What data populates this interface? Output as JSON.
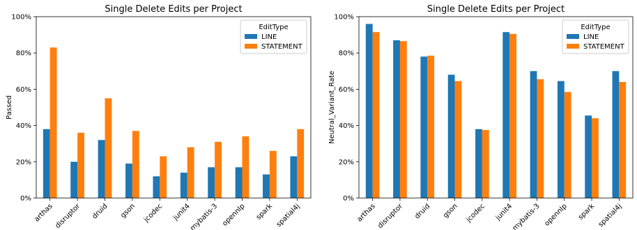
{
  "colors": {
    "line": "#1f77b4",
    "statement": "#ff7f0e"
  },
  "chart_data": [
    {
      "type": "bar",
      "title": "Single Delete Edits per Project",
      "xlabel": "",
      "ylabel": "Passed",
      "ylim": [
        0,
        1
      ],
      "yticks": [
        "0%",
        "20%",
        "40%",
        "60%",
        "80%",
        "100%"
      ],
      "categories": [
        "arthas",
        "disruptor",
        "druid",
        "gson",
        "jcodec",
        "junit4",
        "mybatis-3",
        "opennlp",
        "spark",
        "spatial4j"
      ],
      "legend": {
        "title": "EditType",
        "position": "top-right"
      },
      "series": [
        {
          "name": "LINE",
          "values": [
            0.38,
            0.2,
            0.32,
            0.19,
            0.12,
            0.14,
            0.17,
            0.17,
            0.13,
            0.23
          ]
        },
        {
          "name": "STATEMENT",
          "values": [
            0.83,
            0.36,
            0.55,
            0.37,
            0.23,
            0.28,
            0.31,
            0.34,
            0.26,
            0.38
          ]
        }
      ]
    },
    {
      "type": "bar",
      "title": "Single Delete Edits per Project",
      "xlabel": "",
      "ylabel": "Neutral_Variant_Rate",
      "ylim": [
        0,
        1
      ],
      "yticks": [
        "0%",
        "20%",
        "40%",
        "60%",
        "80%",
        "100%"
      ],
      "categories": [
        "arthas",
        "disruptor",
        "druid",
        "gson",
        "jcodec",
        "junit4",
        "mybatis-3",
        "opennlp",
        "spark",
        "spatial4j"
      ],
      "legend": {
        "title": "EditType",
        "position": "top-right"
      },
      "series": [
        {
          "name": "LINE",
          "values": [
            0.96,
            0.87,
            0.78,
            0.68,
            0.38,
            0.915,
            0.7,
            0.645,
            0.455,
            0.7
          ]
        },
        {
          "name": "STATEMENT",
          "values": [
            0.915,
            0.865,
            0.785,
            0.645,
            0.375,
            0.905,
            0.655,
            0.585,
            0.44,
            0.64
          ]
        }
      ]
    }
  ]
}
